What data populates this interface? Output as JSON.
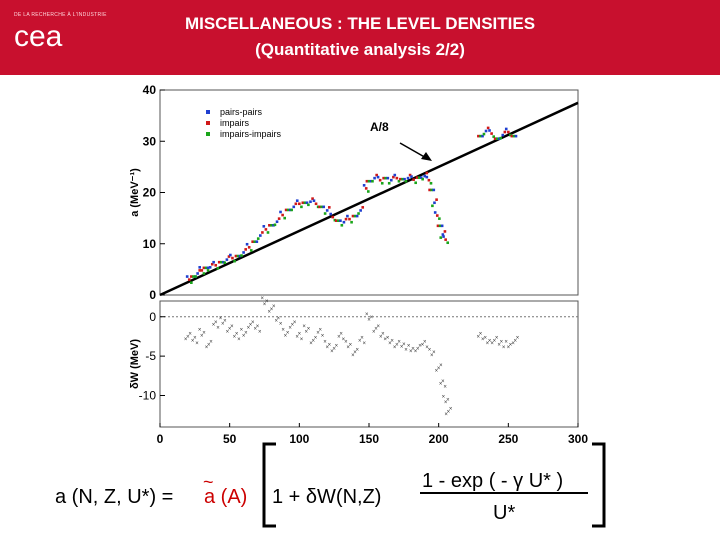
{
  "header": {
    "logo_tagline": "DE LA RECHERCHE À L'INDUSTRIE",
    "logo_text": "cea",
    "title_line1": "MISCELLANEOUS : THE LEVEL DENSITIES",
    "title_line2": "(Quantitative analysis 2/2)",
    "colors": {
      "banner": "#c8102e",
      "text": "#ffffff"
    }
  },
  "chart_data": [
    {
      "type": "scatter",
      "ylabel": "a (MeV⁻¹)",
      "ylim": [
        0,
        40
      ],
      "xlim": [
        0,
        300
      ],
      "yticks": [
        "0",
        "10",
        "20",
        "30",
        "40"
      ],
      "legend_position": "top-left",
      "series": [
        {
          "name": "pairs-pairs",
          "color": "#1f3fd0"
        },
        {
          "name": "impairs",
          "color": "#d01818"
        },
        {
          "name": "impairs-impairs",
          "color": "#1aa51a"
        }
      ],
      "line": {
        "label": "A/8",
        "x": [
          0,
          300
        ],
        "y": [
          0,
          37.5
        ]
      },
      "points": [
        [
          21,
          3
        ],
        [
          24,
          3.6
        ],
        [
          27,
          4.2
        ],
        [
          30,
          4.8
        ],
        [
          33,
          5.3
        ],
        [
          36,
          5.4
        ],
        [
          40,
          5.8
        ],
        [
          44,
          6.4
        ],
        [
          48,
          6.9
        ],
        [
          52,
          7.2
        ],
        [
          56,
          7.6
        ],
        [
          60,
          8.3
        ],
        [
          64,
          9.3
        ],
        [
          68,
          10.4
        ],
        [
          72,
          11.6
        ],
        [
          76,
          12.8
        ],
        [
          80,
          13.6
        ],
        [
          84,
          14.3
        ],
        [
          88,
          15.6
        ],
        [
          92,
          16.6
        ],
        [
          96,
          17.2
        ],
        [
          100,
          17.8
        ],
        [
          104,
          18
        ],
        [
          108,
          18.2
        ],
        [
          112,
          17.8
        ],
        [
          116,
          17.2
        ],
        [
          120,
          16.5
        ],
        [
          124,
          15.2
        ],
        [
          128,
          14.5
        ],
        [
          132,
          14.2
        ],
        [
          136,
          14.8
        ],
        [
          140,
          15.4
        ],
        [
          144,
          16.5
        ],
        [
          148,
          20.8
        ],
        [
          150,
          22.2
        ],
        [
          154,
          22.8
        ],
        [
          158,
          22.4
        ],
        [
          162,
          22.8
        ],
        [
          166,
          22.4
        ],
        [
          170,
          22.8
        ],
        [
          174,
          22.6
        ],
        [
          178,
          22.8
        ],
        [
          182,
          22.5
        ],
        [
          186,
          22.9
        ],
        [
          190,
          23.2
        ],
        [
          193,
          22.4
        ],
        [
          195,
          20.5
        ],
        [
          197,
          18
        ],
        [
          199,
          15.5
        ],
        [
          201,
          13.5
        ],
        [
          203,
          11.8
        ],
        [
          205,
          10.8
        ],
        [
          230,
          31
        ],
        [
          234,
          32
        ],
        [
          238,
          31.5
        ],
        [
          242,
          30.5
        ],
        [
          246,
          31.2
        ],
        [
          250,
          31.8
        ],
        [
          254,
          31
        ]
      ]
    },
    {
      "type": "scatter",
      "ylabel": "δW (MeV)",
      "ylim": [
        -14,
        2
      ],
      "xlim": [
        0,
        300
      ],
      "yticks": [
        "0",
        "-5",
        "-10"
      ],
      "xticks": [
        "0",
        "50",
        "100",
        "150",
        "200",
        "250",
        "300"
      ],
      "points": [
        [
          20,
          -2.5
        ],
        [
          25,
          -3
        ],
        [
          30,
          -2
        ],
        [
          35,
          -3.5
        ],
        [
          40,
          -1
        ],
        [
          45,
          -0.5
        ],
        [
          50,
          -1.5
        ],
        [
          55,
          -2.5
        ],
        [
          60,
          -2
        ],
        [
          65,
          -1
        ],
        [
          70,
          -1.5
        ],
        [
          75,
          2
        ],
        [
          80,
          1
        ],
        [
          85,
          -0.5
        ],
        [
          90,
          -2
        ],
        [
          95,
          -1
        ],
        [
          100,
          -2.5
        ],
        [
          105,
          -1.5
        ],
        [
          110,
          -3
        ],
        [
          115,
          -2
        ],
        [
          120,
          -3.5
        ],
        [
          125,
          -4
        ],
        [
          130,
          -2.5
        ],
        [
          135,
          -3.5
        ],
        [
          140,
          -4.5
        ],
        [
          145,
          -3
        ],
        [
          150,
          0
        ],
        [
          155,
          -1.5
        ],
        [
          160,
          -2.5
        ],
        [
          165,
          -3
        ],
        [
          170,
          -3.5
        ],
        [
          175,
          -3.8
        ],
        [
          180,
          -4
        ],
        [
          185,
          -4
        ],
        [
          190,
          -3.5
        ],
        [
          195,
          -4.5
        ],
        [
          200,
          -6.5
        ],
        [
          203,
          -8.5
        ],
        [
          205,
          -10.5
        ],
        [
          207,
          -12
        ],
        [
          230,
          -2.5
        ],
        [
          235,
          -3
        ],
        [
          240,
          -3
        ],
        [
          245,
          -3.5
        ],
        [
          250,
          -3.5
        ],
        [
          255,
          -3
        ]
      ]
    }
  ],
  "formula": {
    "lhs": "a (N, Z, U*) =",
    "tilde": "~",
    "term": "a (A)",
    "one_plus": "1 + δW(N,Z)",
    "numerator": "1 - exp ( - γ U* )",
    "denominator": "U*"
  }
}
